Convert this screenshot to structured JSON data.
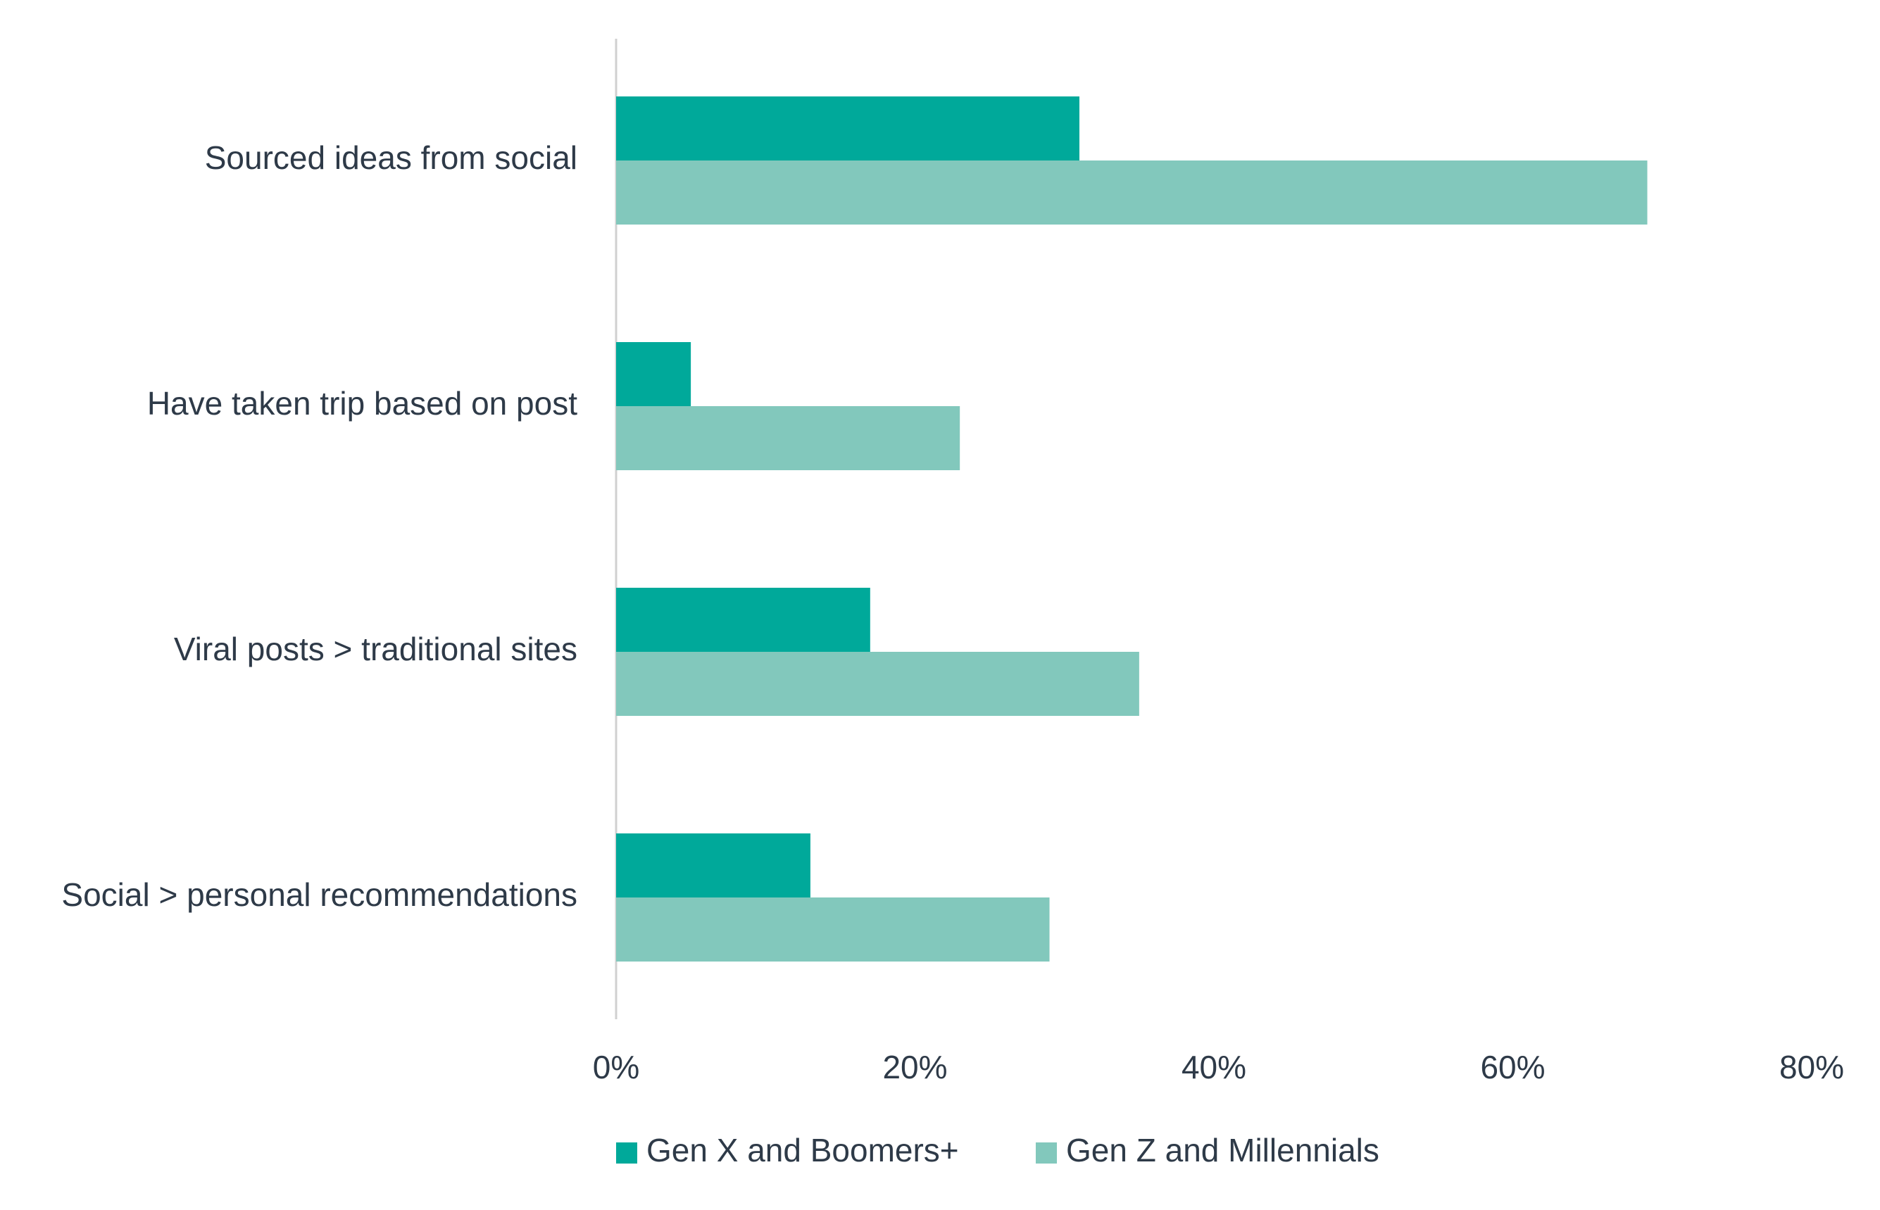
{
  "chart_data": {
    "type": "bar",
    "orientation": "horizontal",
    "categories": [
      "Sourced ideas from social",
      "Have taken trip based on post",
      "Viral posts > traditional sites",
      "Social > personal recommendations"
    ],
    "series": [
      {
        "name": "Gen X and Boomers+",
        "color": "#00a99a",
        "values": [
          31,
          5,
          17,
          13
        ]
      },
      {
        "name": "Gen Z and Millennials",
        "color": "#82c8bc",
        "values": [
          69,
          23,
          35,
          29
        ]
      }
    ],
    "xlim": [
      0,
      80
    ],
    "x_ticks": [
      0,
      20,
      40,
      60,
      80
    ],
    "x_tick_labels": [
      "0%",
      "20%",
      "40%",
      "60%",
      "80%"
    ],
    "grid": false,
    "legend_position": "bottom"
  }
}
